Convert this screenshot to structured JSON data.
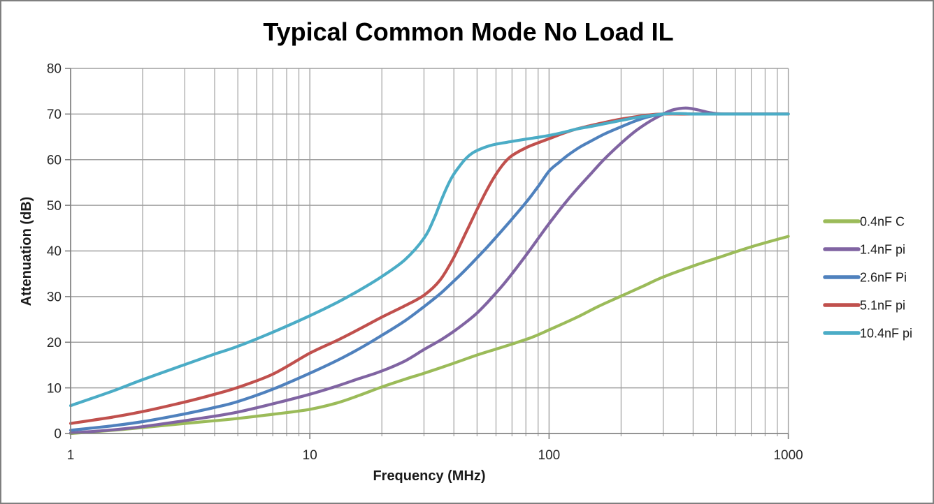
{
  "chart_data": {
    "type": "line",
    "title": "Typical Common Mode No Load IL",
    "xlabel": "Frequency (MHz)",
    "ylabel": "Attenuation (dB)",
    "x_scale": "log",
    "xlim": [
      1,
      1000
    ],
    "ylim": [
      0,
      80
    ],
    "x_tick_labels": [
      "1",
      "10",
      "100",
      "1000"
    ],
    "x_tick_values": [
      1,
      10,
      100,
      1000
    ],
    "y_tick_values": [
      0,
      10,
      20,
      30,
      40,
      50,
      60,
      70,
      80
    ],
    "grid": "both",
    "legend_position": "right",
    "colors": {
      "gridline": "#a0a0a0",
      "axis": "#808080",
      "tick_text": "#262626",
      "title_text": "#000000"
    },
    "series": [
      {
        "name": "0.4nF C",
        "color": "#9BBB59",
        "points": [
          [
            1,
            0
          ],
          [
            1.5,
            0.7
          ],
          [
            2,
            1.3
          ],
          [
            3,
            2.2
          ],
          [
            4,
            2.8
          ],
          [
            5,
            3.3
          ],
          [
            7,
            4.2
          ],
          [
            10,
            5.3
          ],
          [
            13,
            6.7
          ],
          [
            16,
            8.3
          ],
          [
            20,
            10.2
          ],
          [
            25,
            11.9
          ],
          [
            30,
            13.2
          ],
          [
            40,
            15.4
          ],
          [
            50,
            17.2
          ],
          [
            60,
            18.5
          ],
          [
            70,
            19.6
          ],
          [
            85,
            21.1
          ],
          [
            100,
            22.7
          ],
          [
            130,
            25.4
          ],
          [
            160,
            27.8
          ],
          [
            200,
            30.1
          ],
          [
            250,
            32.4
          ],
          [
            300,
            34.3
          ],
          [
            400,
            36.7
          ],
          [
            500,
            38.4
          ],
          [
            700,
            40.9
          ],
          [
            1000,
            43.2
          ]
        ]
      },
      {
        "name": "1.4nF pi",
        "color": "#8064A2",
        "points": [
          [
            1,
            0.1
          ],
          [
            1.5,
            0.8
          ],
          [
            2,
            1.5
          ],
          [
            3,
            2.8
          ],
          [
            4,
            3.8
          ],
          [
            5,
            4.7
          ],
          [
            7,
            6.5
          ],
          [
            10,
            8.6
          ],
          [
            13,
            10.4
          ],
          [
            16,
            12
          ],
          [
            20,
            13.7
          ],
          [
            25,
            15.9
          ],
          [
            30,
            18.4
          ],
          [
            35,
            20.4
          ],
          [
            40,
            22.4
          ],
          [
            45,
            24.4
          ],
          [
            50,
            26.4
          ],
          [
            55,
            28.6
          ],
          [
            60,
            30.8
          ],
          [
            65,
            32.9
          ],
          [
            70,
            35
          ],
          [
            80,
            39
          ],
          [
            90,
            42.7
          ],
          [
            100,
            46
          ],
          [
            115,
            50.1
          ],
          [
            130,
            53.4
          ],
          [
            150,
            57
          ],
          [
            170,
            60.1
          ],
          [
            200,
            63.6
          ],
          [
            230,
            66.3
          ],
          [
            260,
            68.2
          ],
          [
            290,
            69.6
          ],
          [
            320,
            70.7
          ],
          [
            350,
            71.2
          ],
          [
            380,
            71.3
          ],
          [
            420,
            70.9
          ],
          [
            460,
            70.4
          ],
          [
            500,
            70.1
          ],
          [
            560,
            70
          ],
          [
            650,
            70
          ],
          [
            800,
            70
          ],
          [
            1000,
            70
          ]
        ]
      },
      {
        "name": "2.6nF Pi",
        "color": "#4F81BD",
        "points": [
          [
            1,
            0.7
          ],
          [
            1.5,
            1.7
          ],
          [
            2,
            2.6
          ],
          [
            3,
            4.3
          ],
          [
            4,
            5.7
          ],
          [
            5,
            7
          ],
          [
            7,
            9.7
          ],
          [
            10,
            13.2
          ],
          [
            13,
            16
          ],
          [
            16,
            18.5
          ],
          [
            20,
            21.5
          ],
          [
            25,
            24.7
          ],
          [
            30,
            27.8
          ],
          [
            35,
            30.6
          ],
          [
            40,
            33.4
          ],
          [
            45,
            36
          ],
          [
            50,
            38.5
          ],
          [
            55,
            40.8
          ],
          [
            60,
            43
          ],
          [
            70,
            47
          ],
          [
            80,
            50.6
          ],
          [
            90,
            54.1
          ],
          [
            100,
            57.5
          ],
          [
            110,
            59.4
          ],
          [
            120,
            61
          ],
          [
            135,
            62.8
          ],
          [
            150,
            64.1
          ],
          [
            170,
            65.6
          ],
          [
            200,
            67.2
          ],
          [
            230,
            68.5
          ],
          [
            260,
            69.4
          ],
          [
            300,
            70
          ],
          [
            350,
            70.1
          ],
          [
            400,
            70
          ],
          [
            500,
            70
          ],
          [
            700,
            70
          ],
          [
            1000,
            70
          ]
        ]
      },
      {
        "name": "5.1nF pi",
        "color": "#C0504D",
        "points": [
          [
            1,
            2.2
          ],
          [
            1.5,
            3.6
          ],
          [
            2,
            4.8
          ],
          [
            3,
            6.9
          ],
          [
            4,
            8.6
          ],
          [
            5,
            10.1
          ],
          [
            7,
            13
          ],
          [
            10,
            17.6
          ],
          [
            13,
            20.4
          ],
          [
            16,
            22.8
          ],
          [
            20,
            25.5
          ],
          [
            25,
            28
          ],
          [
            30,
            30.3
          ],
          [
            35,
            33.6
          ],
          [
            40,
            38.6
          ],
          [
            45,
            44.1
          ],
          [
            50,
            49.1
          ],
          [
            55,
            53.4
          ],
          [
            60,
            56.8
          ],
          [
            65,
            59.3
          ],
          [
            70,
            60.9
          ],
          [
            80,
            62.6
          ],
          [
            90,
            63.7
          ],
          [
            100,
            64.6
          ],
          [
            115,
            65.8
          ],
          [
            130,
            66.7
          ],
          [
            150,
            67.5
          ],
          [
            175,
            68.3
          ],
          [
            200,
            68.9
          ],
          [
            230,
            69.4
          ],
          [
            260,
            69.8
          ],
          [
            300,
            70
          ],
          [
            400,
            70
          ],
          [
            550,
            70
          ],
          [
            750,
            70
          ],
          [
            1000,
            70
          ]
        ]
      },
      {
        "name": "10.4nF pi",
        "color": "#4BACC6",
        "points": [
          [
            1,
            6.1
          ],
          [
            1.5,
            9.3
          ],
          [
            2,
            11.8
          ],
          [
            3,
            15.1
          ],
          [
            4,
            17.4
          ],
          [
            5,
            19.1
          ],
          [
            7,
            22.2
          ],
          [
            10,
            25.8
          ],
          [
            13,
            28.7
          ],
          [
            16,
            31.3
          ],
          [
            20,
            34.4
          ],
          [
            25,
            38.1
          ],
          [
            30,
            42.8
          ],
          [
            33,
            47
          ],
          [
            36,
            52
          ],
          [
            39,
            55.9
          ],
          [
            42,
            58.4
          ],
          [
            45,
            60.3
          ],
          [
            48,
            61.5
          ],
          [
            52,
            62.4
          ],
          [
            56,
            63
          ],
          [
            60,
            63.4
          ],
          [
            70,
            64
          ],
          [
            80,
            64.5
          ],
          [
            90,
            64.9
          ],
          [
            100,
            65.3
          ],
          [
            115,
            66
          ],
          [
            130,
            66.7
          ],
          [
            150,
            67.3
          ],
          [
            175,
            68
          ],
          [
            200,
            68.6
          ],
          [
            230,
            69.2
          ],
          [
            260,
            69.6
          ],
          [
            300,
            70
          ],
          [
            350,
            70.1
          ],
          [
            400,
            70
          ],
          [
            500,
            70
          ],
          [
            700,
            70
          ],
          [
            1000,
            70
          ]
        ]
      }
    ]
  }
}
